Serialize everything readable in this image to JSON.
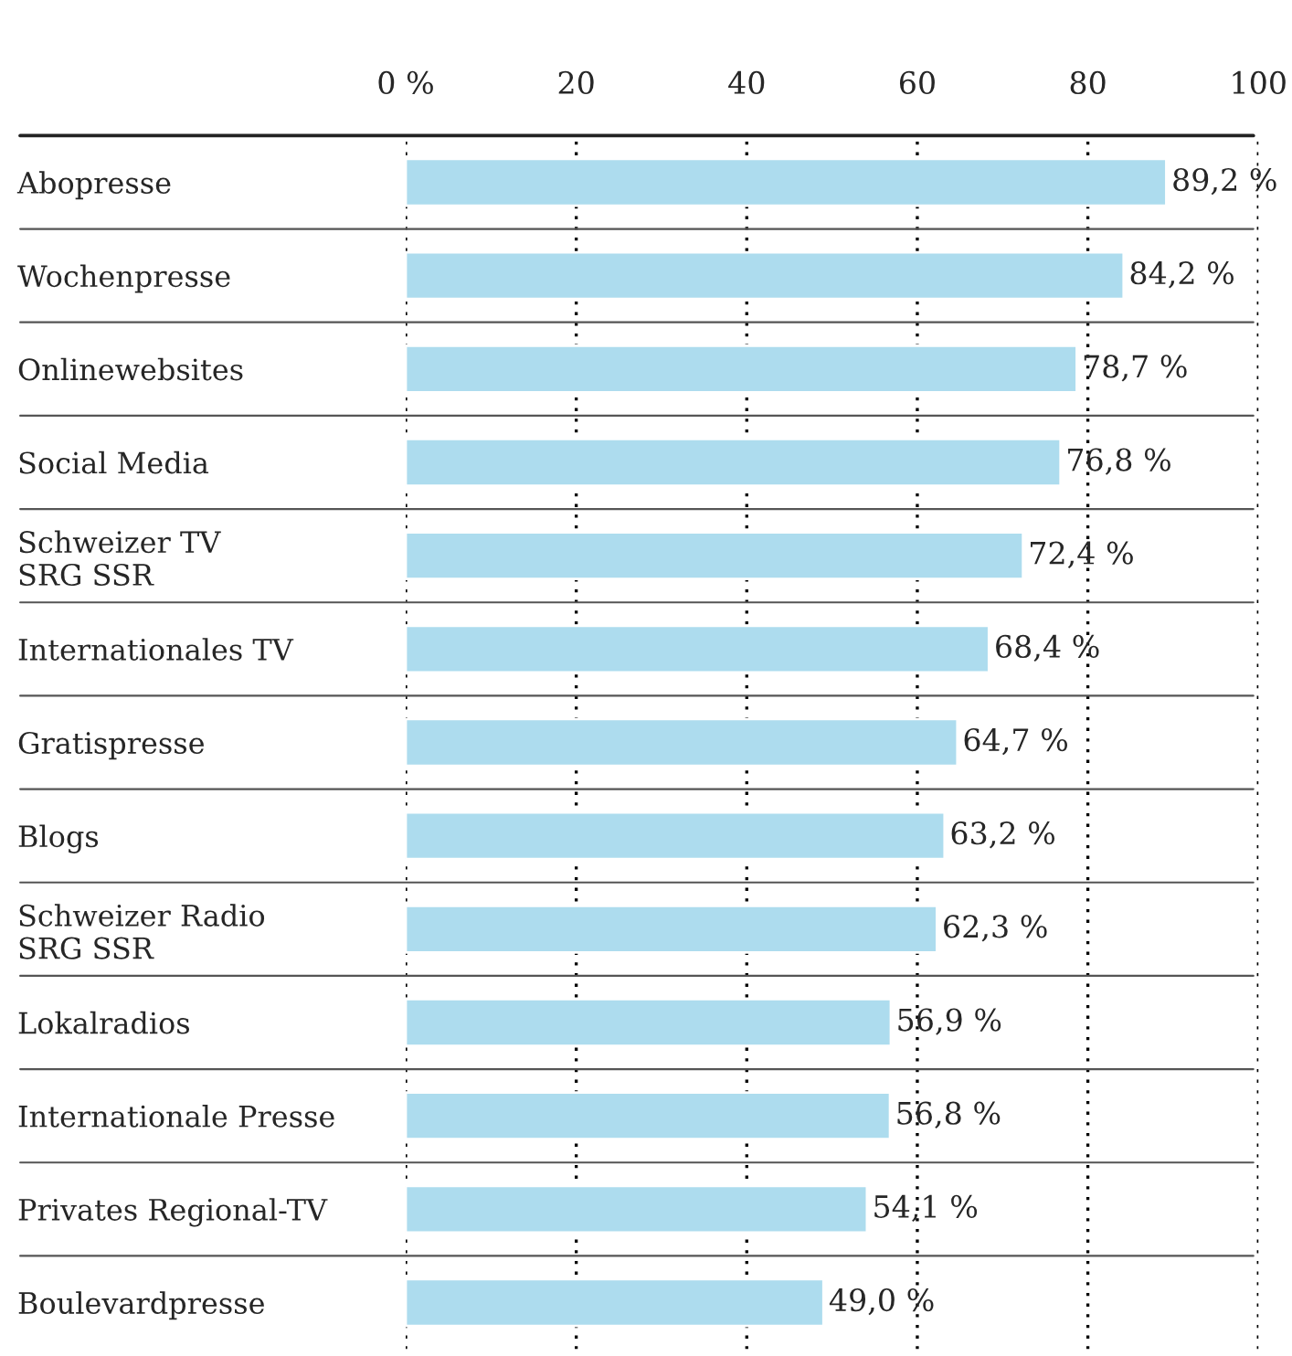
{
  "chart_data": {
    "type": "bar",
    "orientation": "horizontal",
    "categories": [
      "Abopresse",
      "Wochenpresse",
      "Onlinewebsites",
      "Social Media",
      "Schweizer TV\nSRG SSR",
      "Internationales TV",
      "Gratispresse",
      "Blogs",
      "Schweizer Radio\nSRG SSR",
      "Lokalradios",
      "Internationale Presse",
      "Privates Regional-TV",
      "Boulevardpresse"
    ],
    "values": [
      89.2,
      84.2,
      78.7,
      76.8,
      72.4,
      68.4,
      64.7,
      63.2,
      62.3,
      56.9,
      56.8,
      54.1,
      49.0
    ],
    "value_labels": [
      "89,2 %",
      "84,2 %",
      "78,7 %",
      "76,8 %",
      "72,4 %",
      "68,4 %",
      "64,7 %",
      "63,2 %",
      "62,3 %",
      "56,9 %",
      "56,8 %",
      "54,1 %",
      "49,0 %"
    ],
    "color": "#addcee",
    "xlim": [
      0,
      100
    ],
    "xticks": [
      {
        "value": 0,
        "label": "0 %"
      },
      20,
      40,
      60,
      80,
      100
    ],
    "grid": "x"
  }
}
